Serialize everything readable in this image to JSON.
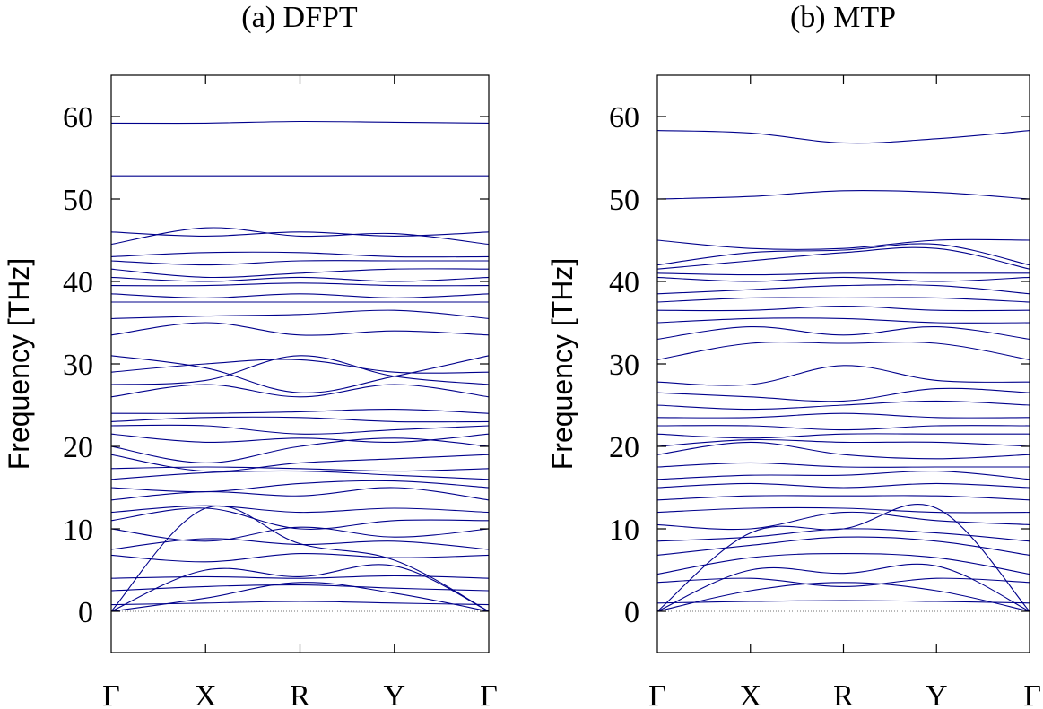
{
  "chart_data": [
    {
      "type": "line",
      "title": "(a) DFPT",
      "ylabel": "Frequency [THz]",
      "ylim": [
        -5,
        65
      ],
      "yticks": [
        0,
        10,
        20,
        30,
        40,
        50,
        60
      ],
      "x": [
        0,
        1,
        2,
        3,
        4
      ],
      "xticks": [
        "Γ",
        "X",
        "R",
        "Y",
        "Γ"
      ],
      "grid": false,
      "line_color": "#00008b",
      "series": [
        {
          "values": [
            0,
            1.6,
            3.5,
            2.2,
            0
          ]
        },
        {
          "values": [
            0,
            5.0,
            4.2,
            5.5,
            0
          ]
        },
        {
          "values": [
            0,
            12.5,
            8.2,
            6.2,
            0
          ]
        },
        {
          "values": [
            0.8,
            1.0,
            1.2,
            1.0,
            0.8
          ]
        },
        {
          "values": [
            2.5,
            3.0,
            3.2,
            2.8,
            2.5
          ]
        },
        {
          "values": [
            4.0,
            4.2,
            4.0,
            4.3,
            4.0
          ]
        },
        {
          "values": [
            6.8,
            6.0,
            7.0,
            6.5,
            6.8
          ]
        },
        {
          "values": [
            7.5,
            8.8,
            8.1,
            8.5,
            7.5
          ]
        },
        {
          "values": [
            10.0,
            8.5,
            10.2,
            9.0,
            10.0
          ]
        },
        {
          "values": [
            11.0,
            12.5,
            10.0,
            11.0,
            11.0
          ]
        },
        {
          "values": [
            12.0,
            12.8,
            12.0,
            12.5,
            12.0
          ]
        },
        {
          "values": [
            13.5,
            14.5,
            14.0,
            15.0,
            13.5
          ]
        },
        {
          "values": [
            15.0,
            14.5,
            15.5,
            15.8,
            15.0
          ]
        },
        {
          "values": [
            16.0,
            16.8,
            17.0,
            16.5,
            16.0
          ]
        },
        {
          "values": [
            17.3,
            17.5,
            17.3,
            17.0,
            17.3
          ]
        },
        {
          "values": [
            19.0,
            17.0,
            18.0,
            18.5,
            19.0
          ]
        },
        {
          "values": [
            20.0,
            18.0,
            20.0,
            21.0,
            20.0
          ]
        },
        {
          "values": [
            21.5,
            20.5,
            21.0,
            20.5,
            21.5
          ]
        },
        {
          "values": [
            22.5,
            22.5,
            21.5,
            22.0,
            22.5
          ]
        },
        {
          "values": [
            23.0,
            23.5,
            23.5,
            23.0,
            23.0
          ]
        },
        {
          "values": [
            24.0,
            24.0,
            24.2,
            24.5,
            24.0
          ]
        },
        {
          "values": [
            26.0,
            27.5,
            26.0,
            27.5,
            26.0
          ]
        },
        {
          "values": [
            27.5,
            28.0,
            31.0,
            28.5,
            27.5
          ]
        },
        {
          "values": [
            29.0,
            30.0,
            30.5,
            29.0,
            29.0
          ]
        },
        {
          "values": [
            31.0,
            29.5,
            26.5,
            28.5,
            31.0
          ]
        },
        {
          "values": [
            33.5,
            35.0,
            33.5,
            34.0,
            33.5
          ]
        },
        {
          "values": [
            35.5,
            35.8,
            36.0,
            36.5,
            35.5
          ]
        },
        {
          "values": [
            37.5,
            37.5,
            37.5,
            37.5,
            37.5
          ]
        },
        {
          "values": [
            38.5,
            38.0,
            38.5,
            38.0,
            38.5
          ]
        },
        {
          "values": [
            39.5,
            39.5,
            39.8,
            39.5,
            39.5
          ]
        },
        {
          "values": [
            40.5,
            40.0,
            40.5,
            40.0,
            40.5
          ]
        },
        {
          "values": [
            41.5,
            40.5,
            41.0,
            41.5,
            41.5
          ]
        },
        {
          "values": [
            42.5,
            42.0,
            42.5,
            42.5,
            42.5
          ]
        },
        {
          "values": [
            43.0,
            43.5,
            43.5,
            43.0,
            43.0
          ]
        },
        {
          "values": [
            44.5,
            46.5,
            45.5,
            45.8,
            44.5
          ]
        },
        {
          "values": [
            46.0,
            45.5,
            46.0,
            45.5,
            46.0
          ]
        },
        {
          "values": [
            52.8,
            52.8,
            52.8,
            52.8,
            52.8
          ]
        },
        {
          "values": [
            59.2,
            59.2,
            59.4,
            59.3,
            59.2
          ]
        }
      ]
    },
    {
      "type": "line",
      "title": "(b) MTP",
      "ylabel": "Frequency [THz]",
      "ylim": [
        -5,
        65
      ],
      "yticks": [
        0,
        10,
        20,
        30,
        40,
        50,
        60
      ],
      "x": [
        0,
        1,
        2,
        3,
        4
      ],
      "xticks": [
        "Γ",
        "X",
        "R",
        "Y",
        "Γ"
      ],
      "grid": false,
      "line_color": "#00008b",
      "series": [
        {
          "values": [
            0,
            2.5,
            3.5,
            2.5,
            0
          ]
        },
        {
          "values": [
            0,
            5.0,
            4.6,
            5.5,
            0
          ]
        },
        {
          "values": [
            0,
            9.5,
            10.0,
            12.5,
            0
          ]
        },
        {
          "values": [
            1.0,
            1.2,
            1.3,
            1.2,
            1.0
          ]
        },
        {
          "values": [
            3.5,
            4.0,
            3.0,
            4.0,
            3.5
          ]
        },
        {
          "values": [
            4.5,
            6.5,
            7.0,
            6.5,
            4.5
          ]
        },
        {
          "values": [
            6.8,
            8.0,
            9.0,
            8.5,
            6.8
          ]
        },
        {
          "values": [
            8.5,
            9.0,
            10.0,
            9.5,
            8.5
          ]
        },
        {
          "values": [
            10.5,
            10.0,
            12.0,
            11.0,
            10.5
          ]
        },
        {
          "values": [
            12.0,
            12.5,
            12.5,
            12.0,
            12.0
          ]
        },
        {
          "values": [
            13.5,
            14.0,
            14.0,
            14.0,
            13.5
          ]
        },
        {
          "values": [
            15.0,
            15.5,
            15.0,
            15.5,
            15.0
          ]
        },
        {
          "values": [
            16.0,
            16.5,
            16.5,
            17.0,
            16.0
          ]
        },
        {
          "values": [
            17.5,
            18.0,
            17.5,
            17.5,
            17.5
          ]
        },
        {
          "values": [
            19.0,
            20.5,
            19.0,
            18.5,
            19.0
          ]
        },
        {
          "values": [
            20.0,
            20.8,
            20.5,
            20.5,
            20.0
          ]
        },
        {
          "values": [
            21.5,
            21.0,
            21.5,
            21.5,
            21.5
          ]
        },
        {
          "values": [
            22.5,
            22.5,
            22.0,
            22.5,
            22.5
          ]
        },
        {
          "values": [
            23.5,
            23.5,
            24.0,
            23.5,
            23.5
          ]
        },
        {
          "values": [
            25.0,
            24.5,
            25.0,
            25.5,
            25.0
          ]
        },
        {
          "values": [
            26.5,
            26.0,
            25.5,
            27.0,
            26.5
          ]
        },
        {
          "values": [
            27.8,
            27.5,
            29.8,
            28.0,
            27.8
          ]
        },
        {
          "values": [
            30.5,
            32.5,
            32.5,
            32.5,
            30.5
          ]
        },
        {
          "values": [
            33.0,
            34.5,
            33.5,
            34.5,
            33.0
          ]
        },
        {
          "values": [
            35.0,
            35.5,
            35.5,
            35.0,
            35.0
          ]
        },
        {
          "values": [
            36.5,
            36.5,
            37.0,
            36.5,
            36.5
          ]
        },
        {
          "values": [
            37.5,
            38.0,
            38.0,
            38.0,
            37.5
          ]
        },
        {
          "values": [
            38.5,
            39.0,
            39.5,
            39.5,
            38.5
          ]
        },
        {
          "values": [
            40.5,
            40.0,
            40.5,
            40.0,
            40.5
          ]
        },
        {
          "values": [
            41.0,
            40.8,
            41.0,
            41.0,
            41.0
          ]
        },
        {
          "values": [
            41.5,
            42.5,
            43.5,
            44.0,
            41.5
          ]
        },
        {
          "values": [
            42.0,
            43.5,
            43.8,
            44.5,
            42.0
          ]
        },
        {
          "values": [
            45.0,
            44.0,
            44.0,
            45.0,
            45.0
          ]
        },
        {
          "values": [
            50.0,
            50.3,
            51.0,
            50.8,
            50.0
          ]
        },
        {
          "values": [
            58.3,
            58.0,
            56.8,
            57.3,
            58.3
          ]
        }
      ]
    }
  ]
}
